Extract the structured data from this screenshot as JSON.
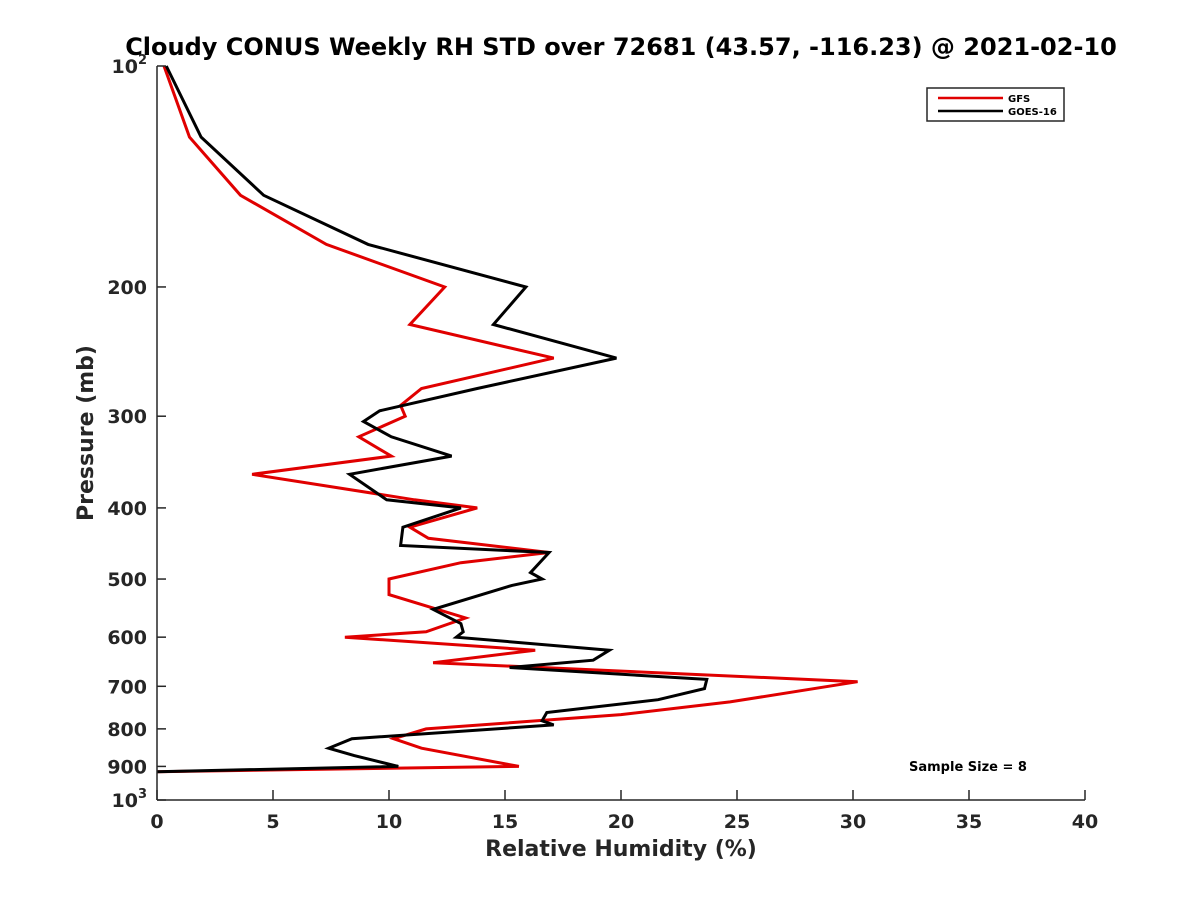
{
  "chart_data": {
    "type": "line",
    "title": "Cloudy CONUS Weekly RH STD over 72681 (43.57, -116.23) @ 2021-02-10",
    "xlabel": "Relative Humidity (%)",
    "ylabel": "Pressure (mb)",
    "xlim": [
      0,
      40
    ],
    "ylim": [
      100,
      1000
    ],
    "y_scale": "log",
    "y_reversed": true,
    "x_ticks": [
      "0",
      "5",
      "10",
      "15",
      "20",
      "25",
      "30",
      "35",
      "40"
    ],
    "y_ticks": [
      {
        "value": 100,
        "base": "10",
        "exp": "2"
      },
      {
        "value": 200,
        "label": "200"
      },
      {
        "value": 300,
        "label": "300"
      },
      {
        "value": 400,
        "label": "400"
      },
      {
        "value": 500,
        "label": "500"
      },
      {
        "value": 600,
        "label": "600"
      },
      {
        "value": 700,
        "label": "700"
      },
      {
        "value": 800,
        "label": "800"
      },
      {
        "value": 900,
        "label": "900"
      },
      {
        "value": 1000,
        "base": "10",
        "exp": "3"
      }
    ],
    "grid": false,
    "legend_position": "top-right",
    "annotation": "Sample Size = 8",
    "series": [
      {
        "name": "GFS",
        "color": "#e00000",
        "points": [
          [
            0.3,
            100
          ],
          [
            1.4,
            125
          ],
          [
            3.6,
            150
          ],
          [
            7.3,
            175
          ],
          [
            12.4,
            200
          ],
          [
            10.9,
            225
          ],
          [
            17.1,
            250
          ],
          [
            11.4,
            275
          ],
          [
            10.5,
            290
          ],
          [
            10.7,
            300
          ],
          [
            8.7,
            320
          ],
          [
            10.1,
            340
          ],
          [
            4.1,
            360
          ],
          [
            11.1,
            390
          ],
          [
            13.8,
            400
          ],
          [
            10.9,
            425
          ],
          [
            11.7,
            440
          ],
          [
            16.9,
            460
          ],
          [
            13.1,
            475
          ],
          [
            10.0,
            500
          ],
          [
            10.0,
            525
          ],
          [
            13.3,
            565
          ],
          [
            11.6,
            590
          ],
          [
            8.1,
            600
          ],
          [
            16.3,
            625
          ],
          [
            11.9,
            650
          ],
          [
            30.2,
            690
          ],
          [
            24.7,
            735
          ],
          [
            20.0,
            765
          ],
          [
            11.6,
            800
          ],
          [
            10.2,
            825
          ],
          [
            11.4,
            850
          ],
          [
            15.6,
            900
          ],
          [
            0.0,
            915
          ]
        ]
      },
      {
        "name": "GOES-16",
        "color": "#000000",
        "points": [
          [
            0.4,
            100
          ],
          [
            1.9,
            125
          ],
          [
            4.6,
            150
          ],
          [
            9.1,
            175
          ],
          [
            15.9,
            200
          ],
          [
            14.5,
            225
          ],
          [
            19.8,
            250
          ],
          [
            13.8,
            275
          ],
          [
            9.6,
            295
          ],
          [
            8.9,
            305
          ],
          [
            10.1,
            320
          ],
          [
            12.7,
            340
          ],
          [
            8.3,
            360
          ],
          [
            9.9,
            390
          ],
          [
            13.1,
            400
          ],
          [
            10.6,
            425
          ],
          [
            10.5,
            450
          ],
          [
            16.9,
            460
          ],
          [
            16.1,
            490
          ],
          [
            16.6,
            500
          ],
          [
            15.3,
            510
          ],
          [
            11.9,
            550
          ],
          [
            13.1,
            575
          ],
          [
            13.2,
            590
          ],
          [
            12.9,
            600
          ],
          [
            19.5,
            625
          ],
          [
            18.8,
            645
          ],
          [
            15.2,
            660
          ],
          [
            23.7,
            685
          ],
          [
            23.6,
            705
          ],
          [
            21.6,
            730
          ],
          [
            16.8,
            760
          ],
          [
            16.6,
            780
          ],
          [
            17.1,
            790
          ],
          [
            8.4,
            825
          ],
          [
            7.4,
            850
          ],
          [
            8.5,
            870
          ],
          [
            10.4,
            900
          ],
          [
            0.0,
            915
          ]
        ]
      }
    ]
  }
}
